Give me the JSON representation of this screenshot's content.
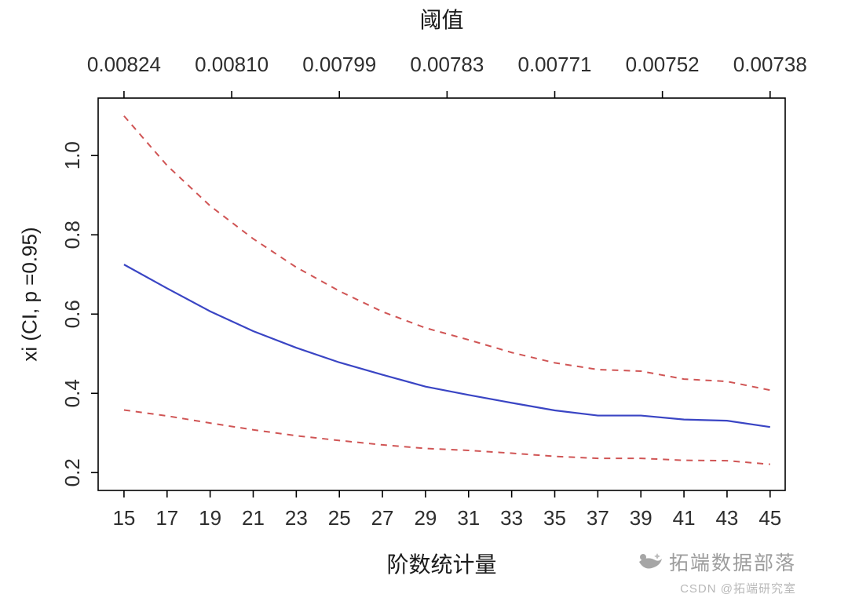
{
  "chart_data": {
    "type": "line",
    "top_axis": {
      "title": "阈值",
      "labels": [
        "0.00824",
        "0.00810",
        "0.00799",
        "0.00783",
        "0.00771",
        "0.00752",
        "0.00738"
      ],
      "positions": [
        15,
        20,
        25,
        30,
        35,
        40,
        45
      ]
    },
    "xlabel": "阶数统计量",
    "ylabel": "xi (CI, p =0.95)",
    "xlim": [
      13.8,
      45.7
    ],
    "ylim": [
      0.155,
      1.145
    ],
    "x_ticks": [
      15,
      17,
      19,
      21,
      23,
      25,
      27,
      29,
      31,
      33,
      35,
      37,
      39,
      41,
      43,
      45
    ],
    "y_ticks": [
      "0.2",
      "0.4",
      "0.6",
      "0.8",
      "1.0"
    ],
    "grid": false,
    "legend": "none",
    "x": [
      15,
      17,
      19,
      21,
      23,
      25,
      27,
      29,
      31,
      33,
      35,
      37,
      39,
      41,
      43,
      45
    ],
    "series": [
      {
        "name": "xi estimate",
        "style": "solid",
        "color": "#3a45c4",
        "values": [
          0.725,
          0.665,
          0.607,
          0.557,
          0.515,
          0.478,
          0.447,
          0.417,
          0.396,
          0.376,
          0.357,
          0.344,
          0.344,
          0.334,
          0.331,
          0.315
        ]
      },
      {
        "name": "upper 95% CI",
        "style": "dashed",
        "color": "#d05555",
        "values": [
          1.1,
          0.975,
          0.873,
          0.79,
          0.718,
          0.658,
          0.606,
          0.565,
          0.535,
          0.503,
          0.477,
          0.46,
          0.456,
          0.436,
          0.43,
          0.408
        ]
      },
      {
        "name": "lower 95% CI",
        "style": "dashed",
        "color": "#d05555",
        "values": [
          0.358,
          0.343,
          0.325,
          0.308,
          0.293,
          0.281,
          0.27,
          0.261,
          0.256,
          0.249,
          0.241,
          0.236,
          0.236,
          0.231,
          0.23,
          0.221
        ]
      }
    ],
    "axis_color": "#000000",
    "tick_label_color": "#2e2e2e"
  },
  "watermark": {
    "brand": "拓端数据部落",
    "credit": "CSDN @拓端研究室"
  }
}
